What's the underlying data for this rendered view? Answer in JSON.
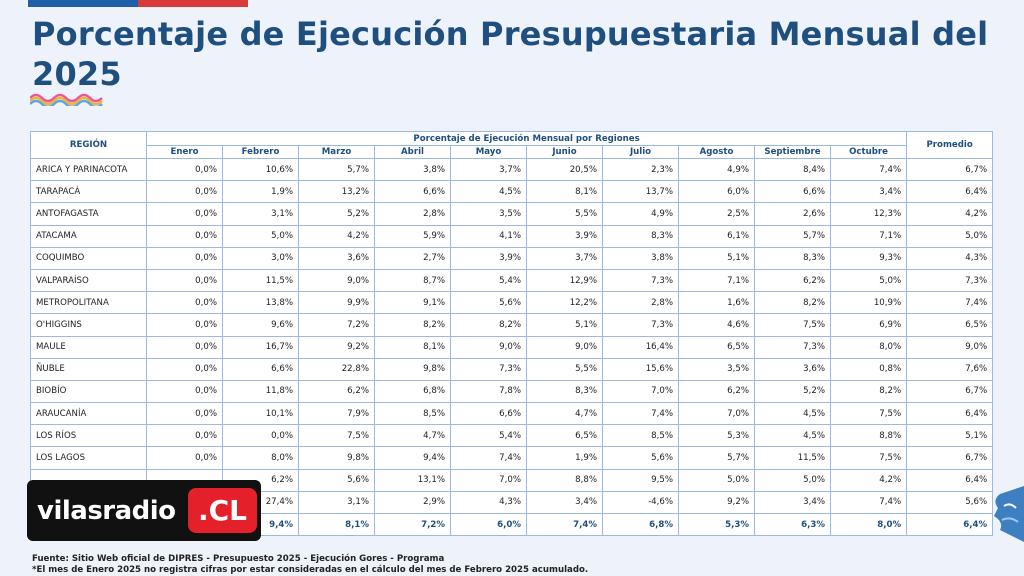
{
  "page": {
    "title": "Porcentaje de Ejecución Presupuestaria Mensual del 2025"
  },
  "table": {
    "region_header": "REGIÓN",
    "group_header": "Porcentaje de Ejecución Mensual por Regiones",
    "average_header": "Promedio",
    "months": [
      "Enero",
      "Febrero",
      "Marzo",
      "Abril",
      "Mayo",
      "Junio",
      "Julio",
      "Agosto",
      "Septiembre",
      "Octubre"
    ],
    "rows": [
      {
        "region": "ARICA Y PARINACOTA",
        "values": [
          "0,0%",
          "10,6%",
          "5,7%",
          "3,8%",
          "3,7%",
          "20,5%",
          "2,3%",
          "4,9%",
          "8,4%",
          "7,4%"
        ],
        "avg": "6,7%"
      },
      {
        "region": "TARAPACÁ",
        "values": [
          "0,0%",
          "1,9%",
          "13,2%",
          "6,6%",
          "4,5%",
          "8,1%",
          "13,7%",
          "6,0%",
          "6,6%",
          "3,4%"
        ],
        "avg": "6,4%"
      },
      {
        "region": "ANTOFAGASTA",
        "values": [
          "0,0%",
          "3,1%",
          "5,2%",
          "2,8%",
          "3,5%",
          "5,5%",
          "4,9%",
          "2,5%",
          "2,6%",
          "12,3%"
        ],
        "avg": "4,2%"
      },
      {
        "region": "ATACAMA",
        "values": [
          "0,0%",
          "5,0%",
          "4,2%",
          "5,9%",
          "4,1%",
          "3,9%",
          "8,3%",
          "6,1%",
          "5,7%",
          "7,1%"
        ],
        "avg": "5,0%"
      },
      {
        "region": "COQUIMBO",
        "values": [
          "0,0%",
          "3,0%",
          "3,6%",
          "2,7%",
          "3,9%",
          "3,7%",
          "3,8%",
          "5,1%",
          "8,3%",
          "9,3%"
        ],
        "avg": "4,3%"
      },
      {
        "region": "VALPARAÍSO",
        "values": [
          "0,0%",
          "11,5%",
          "9,0%",
          "8,7%",
          "5,4%",
          "12,9%",
          "7,3%",
          "7,1%",
          "6,2%",
          "5,0%"
        ],
        "avg": "7,3%"
      },
      {
        "region": "METROPOLITANA",
        "values": [
          "0,0%",
          "13,8%",
          "9,9%",
          "9,1%",
          "5,6%",
          "12,2%",
          "2,8%",
          "1,6%",
          "8,2%",
          "10,9%"
        ],
        "avg": "7,4%"
      },
      {
        "region": "O'HIGGINS",
        "values": [
          "0,0%",
          "9,6%",
          "7,2%",
          "8,2%",
          "8,2%",
          "5,1%",
          "7,3%",
          "4,6%",
          "7,5%",
          "6,9%"
        ],
        "avg": "6,5%"
      },
      {
        "region": "MAULE",
        "values": [
          "0,0%",
          "16,7%",
          "9,2%",
          "8,1%",
          "9,0%",
          "9,0%",
          "16,4%",
          "6,5%",
          "7,3%",
          "8,0%"
        ],
        "avg": "9,0%"
      },
      {
        "region": "ÑUBLE",
        "values": [
          "0,0%",
          "6,6%",
          "22,8%",
          "9,8%",
          "7,3%",
          "5,5%",
          "15,6%",
          "3,5%",
          "3,6%",
          "0,8%"
        ],
        "avg": "7,6%"
      },
      {
        "region": "BIOBÍO",
        "values": [
          "0,0%",
          "11,8%",
          "6,2%",
          "6,8%",
          "7,8%",
          "8,3%",
          "7,0%",
          "6,2%",
          "5,2%",
          "8,2%"
        ],
        "avg": "6,7%"
      },
      {
        "region": "ARAUCANÍA",
        "values": [
          "0,0%",
          "10,1%",
          "7,9%",
          "8,5%",
          "6,6%",
          "4,7%",
          "7,4%",
          "7,0%",
          "4,5%",
          "7,5%"
        ],
        "avg": "6,4%"
      },
      {
        "region": "LOS RÍOS",
        "values": [
          "0,0%",
          "0,0%",
          "7,5%",
          "4,7%",
          "5,4%",
          "6,5%",
          "8,5%",
          "5,3%",
          "4,5%",
          "8,8%"
        ],
        "avg": "5,1%"
      },
      {
        "region": "LOS LAGOS",
        "values": [
          "0,0%",
          "8,0%",
          "9,8%",
          "9,4%",
          "7,4%",
          "1,9%",
          "5,6%",
          "5,7%",
          "11,5%",
          "7,5%"
        ],
        "avg": "6,7%"
      },
      {
        "region": "",
        "values": [
          "",
          "6,2%",
          "5,6%",
          "13,1%",
          "7,0%",
          "8,8%",
          "9,5%",
          "5,0%",
          "5,0%",
          "4,2%"
        ],
        "avg": "6,4%"
      },
      {
        "region": "",
        "values": [
          "",
          "27,4%",
          "3,1%",
          "2,9%",
          "4,3%",
          "3,4%",
          "-4,6%",
          "9,2%",
          "3,4%",
          "7,4%"
        ],
        "avg": "5,6%"
      }
    ],
    "total": {
      "values": [
        "",
        "9,4%",
        "8,1%",
        "7,2%",
        "6,0%",
        "7,4%",
        "6,8%",
        "5,3%",
        "6,3%",
        "8,0%"
      ],
      "avg": "6,4%"
    }
  },
  "footer": {
    "source": "Fuente: Sitio Web oficial de DIPRES - Presupuesto 2025 - Ejecución Gores - Programa",
    "note": "*El mes de Enero 2025 no registra cifras por estar consideradas en el cálculo del mes de Febrero 2025 acumulado."
  },
  "logo": {
    "text": "vilasradio",
    "badge": ".CL"
  },
  "colors": {
    "title": "#1e4f7f",
    "border": "#9cbadf",
    "background": "#eef2fb",
    "logo_red": "#e4202a"
  }
}
